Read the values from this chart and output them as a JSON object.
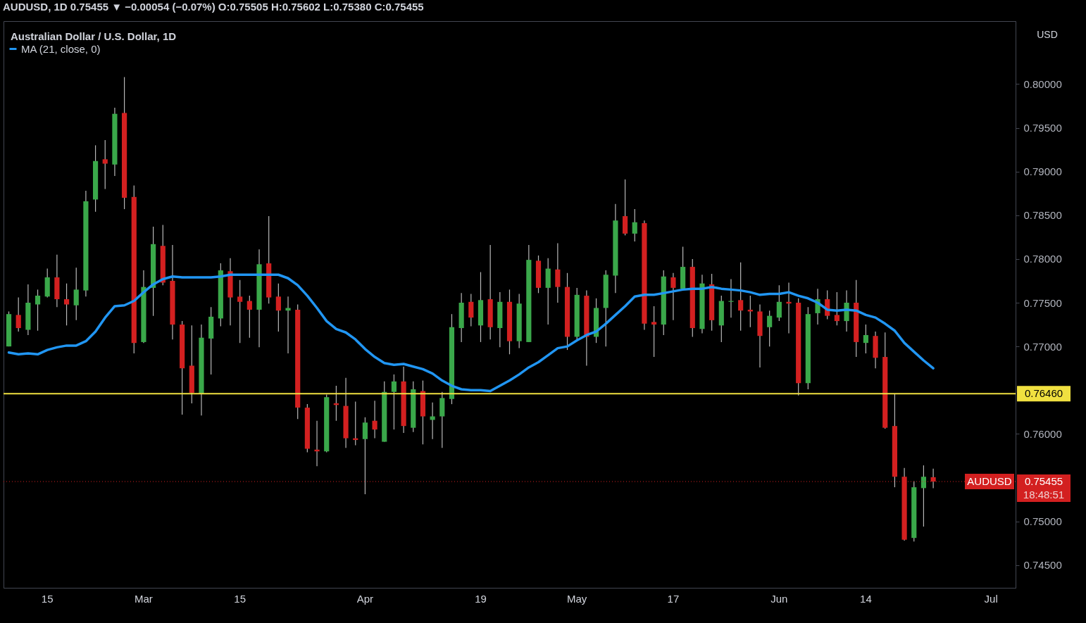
{
  "chart_data": {
    "type": "candlestick",
    "title": "AUDUSD, 1D 0.75455 ▼ −0.00054 (−0.07%) O:0.75505 H:0.75602 L:0.75380 C:0.75455",
    "subtitle": "Australian Dollar / U.S. Dollar, 1D",
    "ylabel": "USD",
    "categories": [
      null,
      null,
      null,
      null,
      "15",
      null,
      null,
      null,
      null,
      null,
      null,
      null,
      null,
      null,
      "Mar",
      null,
      null,
      null,
      null,
      null,
      null,
      null,
      null,
      null,
      "15",
      null,
      null,
      null,
      null,
      null,
      null,
      null,
      null,
      null,
      null,
      null,
      null,
      "Apr",
      null,
      null,
      null,
      null,
      null,
      null,
      null,
      null,
      null,
      null,
      null,
      "19",
      null,
      null,
      null,
      null,
      null,
      null,
      null,
      null,
      null,
      "May",
      null,
      null,
      null,
      null,
      null,
      null,
      null,
      null,
      null,
      "17",
      null,
      null,
      null,
      null,
      null,
      null,
      null,
      null,
      null,
      null,
      "Jun",
      null,
      null,
      null,
      null,
      null,
      null,
      null,
      null,
      "14",
      null,
      null,
      null,
      null,
      null,
      null,
      null,
      null,
      null,
      null,
      null,
      null,
      "Jul",
      null,
      null
    ],
    "ohlc": [
      [
        0.77,
        0.774,
        0.77,
        0.7737
      ],
      [
        0.7736,
        0.7756,
        0.7717,
        0.7721
      ],
      [
        0.7719,
        0.7771,
        0.7713,
        0.775
      ],
      [
        0.7748,
        0.7765,
        0.7718,
        0.7758
      ],
      [
        0.7757,
        0.7789,
        0.7756,
        0.7779
      ],
      [
        0.7779,
        0.7805,
        0.7745,
        0.7754
      ],
      [
        0.7754,
        0.7772,
        0.7724,
        0.7748
      ],
      [
        0.7747,
        0.779,
        0.773,
        0.7765
      ],
      [
        0.7764,
        0.7878,
        0.7757,
        0.7866
      ],
      [
        0.7868,
        0.793,
        0.7854,
        0.7912
      ],
      [
        0.7914,
        0.7936,
        0.788,
        0.7909
      ],
      [
        0.7908,
        0.7973,
        0.7895,
        0.7966
      ],
      [
        0.7967,
        0.8008,
        0.7857,
        0.787
      ],
      [
        0.7871,
        0.7884,
        0.7692,
        0.7704
      ],
      [
        0.7705,
        0.7787,
        0.7704,
        0.7768
      ],
      [
        0.7767,
        0.7837,
        0.7735,
        0.7817
      ],
      [
        0.7815,
        0.7839,
        0.777,
        0.7773
      ],
      [
        0.7775,
        0.7816,
        0.7708,
        0.7725
      ],
      [
        0.7725,
        0.7729,
        0.7622,
        0.7675
      ],
      [
        0.7678,
        0.7724,
        0.7635,
        0.7647
      ],
      [
        0.7646,
        0.7725,
        0.7621,
        0.771
      ],
      [
        0.7709,
        0.7745,
        0.7668,
        0.7734
      ],
      [
        0.7732,
        0.7795,
        0.7723,
        0.7787
      ],
      [
        0.7786,
        0.7801,
        0.7724,
        0.7756
      ],
      [
        0.7757,
        0.7776,
        0.7704,
        0.7751
      ],
      [
        0.7752,
        0.7758,
        0.771,
        0.7742
      ],
      [
        0.7742,
        0.7811,
        0.7699,
        0.7794
      ],
      [
        0.7795,
        0.7849,
        0.7749,
        0.7756
      ],
      [
        0.7757,
        0.7772,
        0.7717,
        0.7741
      ],
      [
        0.7741,
        0.7757,
        0.7692,
        0.7744
      ],
      [
        0.7742,
        0.7748,
        0.7617,
        0.763
      ],
      [
        0.763,
        0.7634,
        0.7579,
        0.7583
      ],
      [
        0.7582,
        0.7615,
        0.7563,
        0.758
      ],
      [
        0.758,
        0.7645,
        0.7579,
        0.7642
      ],
      [
        0.7635,
        0.7655,
        0.7615,
        0.7633
      ],
      [
        0.7632,
        0.7664,
        0.7584,
        0.7595
      ],
      [
        0.7595,
        0.7637,
        0.7587,
        0.7593
      ],
      [
        0.7594,
        0.7619,
        0.7531,
        0.7613
      ],
      [
        0.7615,
        0.7638,
        0.7595,
        0.7605
      ],
      [
        0.7591,
        0.766,
        0.7591,
        0.7648
      ],
      [
        0.7648,
        0.7668,
        0.7605,
        0.766
      ],
      [
        0.766,
        0.7677,
        0.7601,
        0.7609
      ],
      [
        0.7607,
        0.766,
        0.7602,
        0.7651
      ],
      [
        0.7649,
        0.7661,
        0.7588,
        0.762
      ],
      [
        0.7616,
        0.7636,
        0.7594,
        0.762
      ],
      [
        0.762,
        0.7648,
        0.7584,
        0.7641
      ],
      [
        0.764,
        0.7737,
        0.7634,
        0.7722
      ],
      [
        0.7721,
        0.7761,
        0.7705,
        0.775
      ],
      [
        0.7751,
        0.776,
        0.7723,
        0.7733
      ],
      [
        0.7724,
        0.7785,
        0.7705,
        0.7753
      ],
      [
        0.7754,
        0.7816,
        0.7708,
        0.7722
      ],
      [
        0.7721,
        0.7762,
        0.7699,
        0.7751
      ],
      [
        0.7751,
        0.7765,
        0.7691,
        0.7706
      ],
      [
        0.7706,
        0.776,
        0.7698,
        0.7749
      ],
      [
        0.7705,
        0.7816,
        0.7705,
        0.7799
      ],
      [
        0.7798,
        0.7804,
        0.7761,
        0.7767
      ],
      [
        0.7767,
        0.7801,
        0.7725,
        0.7789
      ],
      [
        0.7788,
        0.7818,
        0.775,
        0.7768
      ],
      [
        0.7768,
        0.7784,
        0.7696,
        0.7711
      ],
      [
        0.7711,
        0.7767,
        0.7706,
        0.7759
      ],
      [
        0.7758,
        0.7764,
        0.7678,
        0.7711
      ],
      [
        0.7711,
        0.7755,
        0.7704,
        0.7744
      ],
      [
        0.7744,
        0.7787,
        0.77,
        0.7782
      ],
      [
        0.7781,
        0.7863,
        0.7761,
        0.7844
      ],
      [
        0.7849,
        0.7891,
        0.7827,
        0.7829
      ],
      [
        0.7829,
        0.7857,
        0.782,
        0.7842
      ],
      [
        0.7841,
        0.7844,
        0.7719,
        0.7726
      ],
      [
        0.7728,
        0.7746,
        0.7688,
        0.7725
      ],
      [
        0.7725,
        0.7787,
        0.7713,
        0.778
      ],
      [
        0.7779,
        0.7784,
        0.773,
        0.7767
      ],
      [
        0.7766,
        0.7814,
        0.7764,
        0.7791
      ],
      [
        0.7791,
        0.78,
        0.7711,
        0.7721
      ],
      [
        0.772,
        0.7782,
        0.7715,
        0.7772
      ],
      [
        0.7771,
        0.7783,
        0.7718,
        0.773
      ],
      [
        0.7724,
        0.7758,
        0.7705,
        0.7752
      ],
      [
        0.7751,
        0.7777,
        0.7733,
        0.7752
      ],
      [
        0.7753,
        0.7796,
        0.7718,
        0.7741
      ],
      [
        0.7742,
        0.7758,
        0.7722,
        0.774
      ],
      [
        0.774,
        0.7748,
        0.7676,
        0.7712
      ],
      [
        0.7722,
        0.7741,
        0.77,
        0.7735
      ],
      [
        0.7733,
        0.777,
        0.7729,
        0.7751
      ],
      [
        0.7751,
        0.7773,
        0.7715,
        0.7749
      ],
      [
        0.775,
        0.7755,
        0.7644,
        0.7658
      ],
      [
        0.7658,
        0.7745,
        0.7651,
        0.7737
      ],
      [
        0.7738,
        0.7766,
        0.7725,
        0.7754
      ],
      [
        0.7754,
        0.7764,
        0.7731,
        0.7735
      ],
      [
        0.7736,
        0.7762,
        0.7724,
        0.7729
      ],
      [
        0.7729,
        0.7764,
        0.7717,
        0.775
      ],
      [
        0.775,
        0.7776,
        0.7688,
        0.7705
      ],
      [
        0.7704,
        0.7725,
        0.7692,
        0.7713
      ],
      [
        0.7712,
        0.7717,
        0.7675,
        0.7687
      ],
      [
        0.7688,
        0.7716,
        0.7606,
        0.7607
      ],
      [
        0.7609,
        0.7646,
        0.7539,
        0.7551
      ],
      [
        0.7551,
        0.7561,
        0.7478,
        0.7479
      ],
      [
        0.7481,
        0.7546,
        0.7477,
        0.7539
      ],
      [
        0.7538,
        0.7564,
        0.7494,
        0.7551
      ],
      [
        0.75505,
        0.75602,
        0.7538,
        0.75455
      ],
      null,
      null,
      null,
      null,
      null,
      null,
      null,
      null
    ],
    "series": [
      {
        "type": "line",
        "name": "MA (21, close, 0)",
        "color": "#2196f3",
        "values": [
          0.7693,
          0.7691,
          0.7692,
          0.7691,
          0.7696,
          0.7699,
          0.7701,
          0.7701,
          0.7706,
          0.7717,
          0.7733,
          0.7746,
          0.7747,
          0.7752,
          0.7762,
          0.7771,
          0.7777,
          0.778,
          0.7779,
          0.7779,
          0.7779,
          0.7779,
          0.778,
          0.7782,
          0.7782,
          0.7782,
          0.7782,
          0.7782,
          0.7782,
          0.7778,
          0.777,
          0.7758,
          0.7744,
          0.7729,
          0.772,
          0.7716,
          0.7708,
          0.7697,
          0.7688,
          0.7681,
          0.7679,
          0.768,
          0.7677,
          0.7674,
          0.7669,
          0.7661,
          0.7655,
          0.7651,
          0.765,
          0.765,
          0.7649,
          0.7655,
          0.7661,
          0.7668,
          0.7676,
          0.7682,
          0.769,
          0.7698,
          0.77,
          0.7707,
          0.7713,
          0.7717,
          0.7726,
          0.7736,
          0.7746,
          0.7757,
          0.7759,
          0.7759,
          0.7761,
          0.7763,
          0.7765,
          0.7766,
          0.7766,
          0.7768,
          0.7766,
          0.7765,
          0.7764,
          0.7762,
          0.7759,
          0.776,
          0.776,
          0.7762,
          0.7758,
          0.7755,
          0.775,
          0.7742,
          0.7741,
          0.7742,
          0.7741,
          0.7736,
          0.7733,
          0.7726,
          0.7718,
          0.7704,
          0.7694,
          0.7684,
          0.7675,
          null,
          null,
          null,
          null,
          null,
          null,
          null,
          null
        ]
      }
    ],
    "ylim": [
      0.7424,
      0.8072
    ],
    "yticks": [
      {
        "value": 0.745,
        "label": "0.74500"
      },
      {
        "value": 0.75,
        "label": "0.75000"
      },
      {
        "value": 0.76,
        "label": "0.76000"
      },
      {
        "value": 0.77,
        "label": "0.77000"
      },
      {
        "value": 0.775,
        "label": "0.77500"
      },
      {
        "value": 0.78,
        "label": "0.78000"
      },
      {
        "value": 0.785,
        "label": "0.78500"
      },
      {
        "value": 0.79,
        "label": "0.79000"
      },
      {
        "value": 0.795,
        "label": "0.79500"
      },
      {
        "value": 0.8,
        "label": "0.80000"
      }
    ],
    "ref_lines": [
      {
        "axis": "y",
        "value": 0.7646,
        "label": "0.76460",
        "color": "#f0e040",
        "line_style": "solid"
      },
      {
        "axis": "y",
        "value": 0.75455,
        "label": "AUDUSD",
        "color": "#d32020",
        "line_style": "dotted"
      }
    ],
    "annotations": [
      "0.75455",
      "18:48:51"
    ],
    "legend": "top left"
  }
}
